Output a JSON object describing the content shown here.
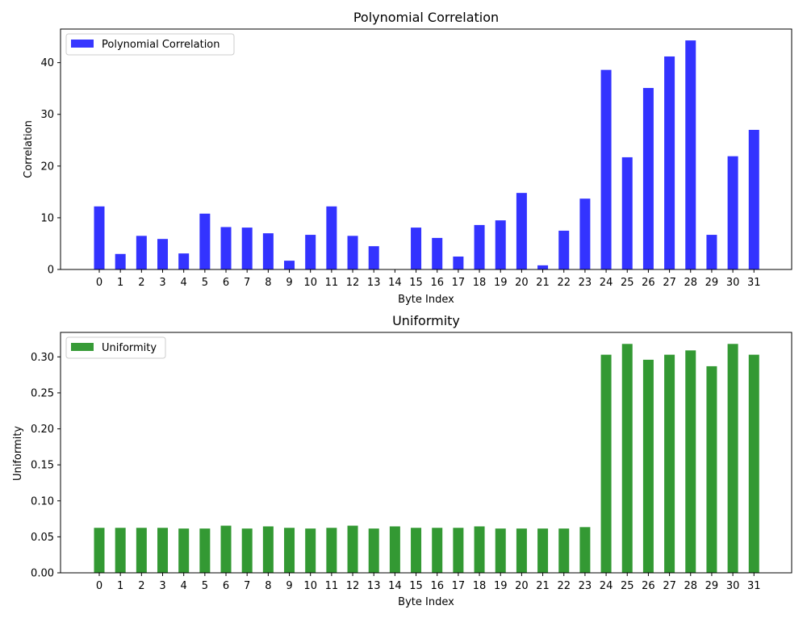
{
  "chart_data": [
    {
      "type": "bar",
      "title": "Polynomial Correlation",
      "xlabel": "Byte Index",
      "ylabel": "Correlation",
      "categories": [
        "0",
        "1",
        "2",
        "3",
        "4",
        "5",
        "6",
        "7",
        "8",
        "9",
        "10",
        "11",
        "12",
        "13",
        "14",
        "15",
        "16",
        "17",
        "18",
        "19",
        "20",
        "21",
        "22",
        "23",
        "24",
        "25",
        "26",
        "27",
        "28",
        "29",
        "30",
        "31"
      ],
      "series": [
        {
          "name": "Polynomial Correlation",
          "color": "#3333ff",
          "values": [
            12.2,
            3.0,
            6.5,
            5.9,
            3.1,
            10.8,
            8.2,
            8.1,
            7.0,
            1.7,
            6.7,
            12.2,
            6.5,
            4.5,
            0.0,
            8.1,
            6.1,
            2.5,
            8.6,
            9.5,
            14.8,
            0.8,
            7.5,
            13.7,
            38.6,
            21.7,
            35.1,
            41.2,
            44.3,
            6.7,
            21.9,
            27.0
          ]
        }
      ],
      "yticks": [
        "0",
        "10",
        "20",
        "30",
        "40"
      ],
      "ytick_values": [
        0,
        10,
        20,
        30,
        40
      ],
      "ylim": [
        0,
        46.5
      ],
      "legend": "top-left"
    },
    {
      "type": "bar",
      "title": "Uniformity",
      "xlabel": "Byte Index",
      "ylabel": "Uniformity",
      "categories": [
        "0",
        "1",
        "2",
        "3",
        "4",
        "5",
        "6",
        "7",
        "8",
        "9",
        "10",
        "11",
        "12",
        "13",
        "14",
        "15",
        "16",
        "17",
        "18",
        "19",
        "20",
        "21",
        "22",
        "23",
        "24",
        "25",
        "26",
        "27",
        "28",
        "29",
        "30",
        "31"
      ],
      "series": [
        {
          "name": "Uniformity",
          "color": "#339933",
          "values": [
            0.0625,
            0.0625,
            0.0625,
            0.0625,
            0.0615,
            0.0615,
            0.0655,
            0.0615,
            0.0645,
            0.0625,
            0.0615,
            0.0625,
            0.0655,
            0.0615,
            0.0645,
            0.0625,
            0.0625,
            0.0625,
            0.0645,
            0.0615,
            0.0615,
            0.0615,
            0.0615,
            0.0635,
            0.303,
            0.318,
            0.296,
            0.303,
            0.309,
            0.287,
            0.318,
            0.303
          ]
        }
      ],
      "yticks": [
        "0.00",
        "0.05",
        "0.10",
        "0.15",
        "0.20",
        "0.25",
        "0.30"
      ],
      "ytick_values": [
        0,
        0.05,
        0.1,
        0.15,
        0.2,
        0.25,
        0.3
      ],
      "ylim": [
        0,
        0.334
      ],
      "legend": "top-left"
    }
  ]
}
